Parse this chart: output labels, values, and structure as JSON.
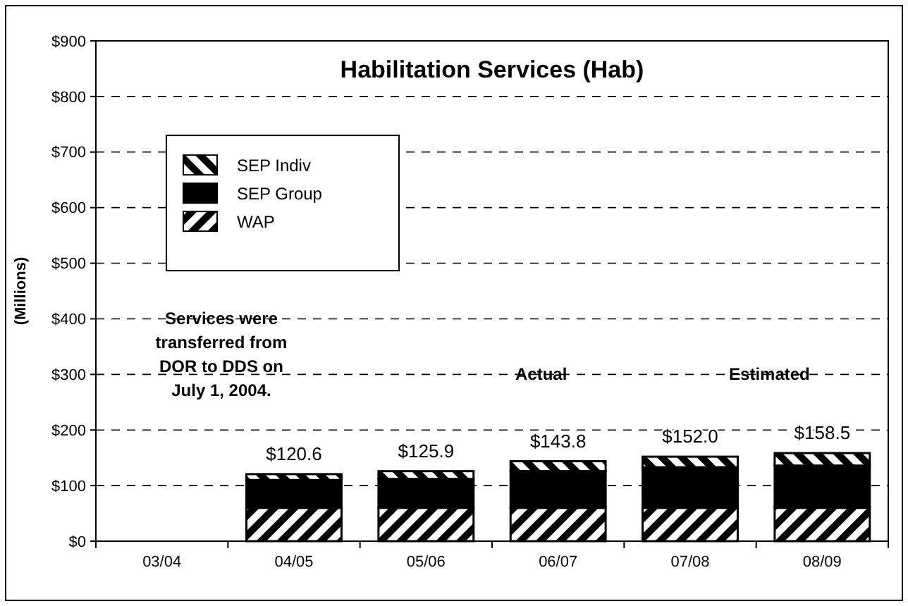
{
  "chart_data": {
    "type": "bar",
    "title": "Habilitation Services (Hab)",
    "ylabel": "(Millions)",
    "categories": [
      "03/04",
      "04/05",
      "05/06",
      "06/07",
      "07/08",
      "08/09"
    ],
    "stacked": true,
    "series": [
      {
        "name": "WAP",
        "color": "#000000",
        "values": [
          null,
          60,
          60,
          60,
          60,
          60
        ]
      },
      {
        "name": "SEP Group",
        "color": "#000000",
        "values": [
          null,
          50,
          52,
          66,
          73,
          76
        ]
      },
      {
        "name": "SEP Indiv",
        "color": "#000000",
        "values": [
          null,
          10.6,
          13.9,
          17.8,
          19,
          22.5
        ]
      }
    ],
    "totals": [
      null,
      "$120.6",
      "$125.9",
      "$143.8",
      "$152.0",
      "$158.5"
    ],
    "ylim": [
      0,
      900
    ],
    "yticks": [
      {
        "value": 0,
        "label": "$0"
      },
      {
        "value": 100,
        "label": "$100"
      },
      {
        "value": 200,
        "label": "$200"
      },
      {
        "value": 300,
        "label": "$300"
      },
      {
        "value": 400,
        "label": "$400"
      },
      {
        "value": 500,
        "label": "$500"
      },
      {
        "value": 600,
        "label": "$600"
      },
      {
        "value": 700,
        "label": "$700"
      },
      {
        "value": 800,
        "label": "$800"
      },
      {
        "value": 900,
        "label": "$900"
      }
    ],
    "grid": "y",
    "legend": "top left",
    "annotations": [
      "Services were transferred from DOR to DDS on July 1, 2004.",
      "Actual",
      "Estimated"
    ]
  }
}
